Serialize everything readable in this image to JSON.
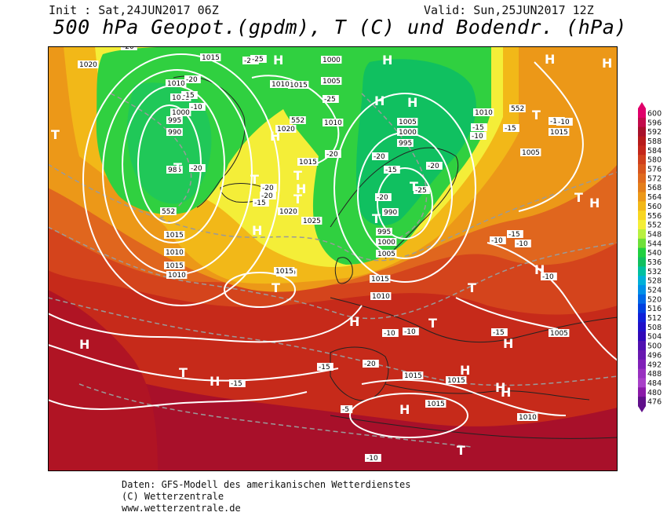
{
  "header": {
    "init": "Init : Sat,24JUN2017 06Z",
    "valid": "Valid: Sun,25JUN2017 12Z",
    "title": "500 hPa Geopot.(gpdm), T (C) und Bodendr. (hPa)"
  },
  "legend": {
    "levels": [
      "600",
      "596",
      "592",
      "588",
      "584",
      "580",
      "576",
      "572",
      "568",
      "564",
      "560",
      "556",
      "552",
      "548",
      "544",
      "540",
      "536",
      "532",
      "528",
      "524",
      "520",
      "516",
      "512",
      "508",
      "504",
      "500",
      "496",
      "492",
      "488",
      "484",
      "480",
      "476"
    ],
    "colors": [
      "#e0006a",
      "#c20b4a",
      "#a8102a",
      "#b71a1a",
      "#c4261a",
      "#d0401c",
      "#d8561e",
      "#e06a1e",
      "#e47e1a",
      "#ec9818",
      "#f2b818",
      "#f8d620",
      "#f4ee38",
      "#b8f040",
      "#6ee038",
      "#20d040",
      "#10c060",
      "#00c0a0",
      "#00b0d8",
      "#0090e8",
      "#0068e8",
      "#0040e0",
      "#1020d8",
      "#2010c8",
      "#3008b8",
      "#5010b0",
      "#6818b0",
      "#8020b8",
      "#9830c0",
      "#a840c8",
      "#8a1aa8",
      "#60108a"
    ]
  },
  "map": {
    "pressure_labels": [
      "1020",
      "1015",
      "1010",
      "1005",
      "1000",
      "995",
      "990",
      "985",
      "1015",
      "1020",
      "1000",
      "1005",
      "1010",
      "1015",
      "1010",
      "1005",
      "1000",
      "995",
      "990",
      "1010",
      "1005",
      "1015",
      "1020",
      "1025",
      "1015",
      "1010",
      "1015",
      "1010",
      "1000",
      "995",
      "1000",
      "1005",
      "1015",
      "1010",
      "1015",
      "1015",
      "1015",
      "1015",
      "1010",
      "1005"
    ],
    "temp_labels": [
      "-20",
      "-25",
      "-20",
      "-15",
      "-10",
      "-25",
      "-20",
      "-20",
      "-15",
      "-20",
      "-25",
      "-20",
      "-20",
      "-15",
      "-20",
      "-25",
      "-20",
      "-15",
      "-10",
      "-15",
      "-10",
      "-10",
      "-15",
      "-10",
      "-10",
      "-10",
      "-10",
      "-10",
      "-15",
      "-15",
      "-20",
      "-15",
      "-10",
      "-5"
    ],
    "geo_labels": [
      "552",
      "552",
      "552"
    ],
    "highs": [
      "H",
      "H",
      "H",
      "H",
      "H",
      "H",
      "H",
      "H",
      "H",
      "H",
      "H",
      "H",
      "H",
      "H",
      "H",
      "H",
      "H",
      "H",
      "H"
    ],
    "lows": [
      "T",
      "T",
      "T",
      "T",
      "T",
      "T",
      "T",
      "T",
      "T",
      "T",
      "T",
      "T",
      "T",
      "T"
    ]
  },
  "footer": {
    "line1": "Daten: GFS-Modell des amerikanischen Wetterdienstes",
    "line2": "(C) Wetterzentrale",
    "line3": "www.wetterzentrale.de"
  }
}
